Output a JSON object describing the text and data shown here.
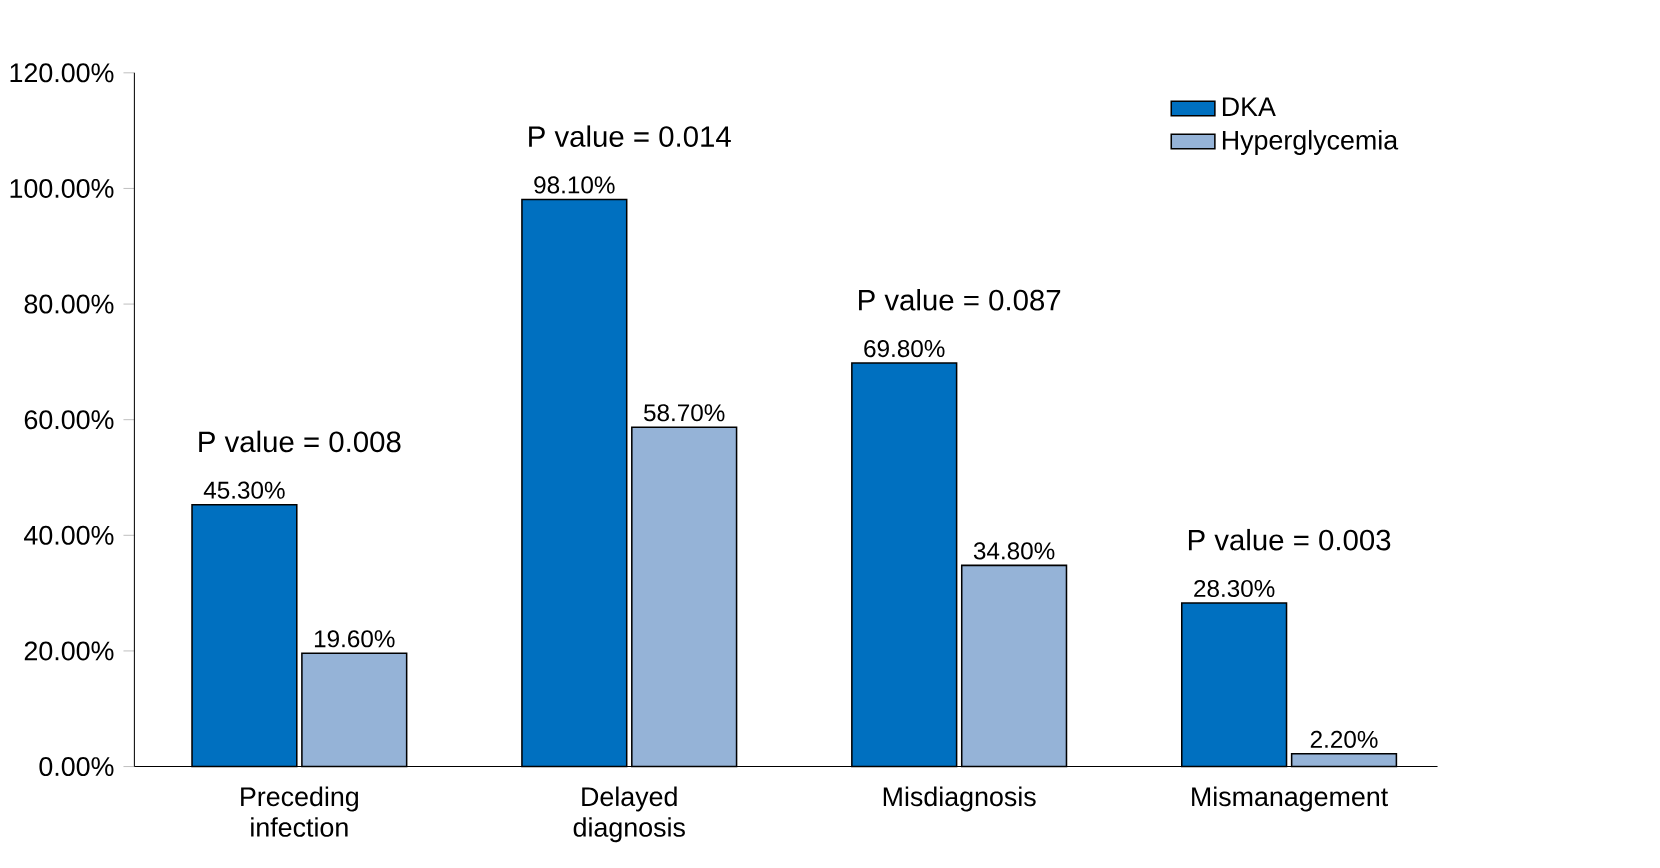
{
  "chart_data": {
    "type": "bar",
    "categories": [
      "Preceding infection",
      "Delayed diagnosis",
      "Misdiagnosis",
      "Mismanagement"
    ],
    "series": [
      {
        "name": "DKA",
        "color": "#0070c0",
        "values": [
          45.3,
          98.1,
          69.8,
          28.3
        ],
        "value_labels": [
          "45.30%",
          "98.10%",
          "69.80%",
          "28.30%"
        ]
      },
      {
        "name": "Hyperglycemia",
        "color": "#95b3d7",
        "values": [
          19.6,
          58.7,
          34.8,
          2.2
        ],
        "value_labels": [
          "19.60%",
          "58.70%",
          "34.80%",
          "2.20%"
        ]
      }
    ],
    "ylim": [
      0,
      120
    ],
    "yticks": [
      {
        "value": 0,
        "label": "0.00%"
      },
      {
        "value": 20,
        "label": "20.00%"
      },
      {
        "value": 40,
        "label": "40.00%"
      },
      {
        "value": 60,
        "label": "60.00%"
      },
      {
        "value": 80,
        "label": "80.00%"
      },
      {
        "value": 100,
        "label": "100.00%"
      },
      {
        "value": 120,
        "label": "120.00%"
      }
    ],
    "annotations": [
      "P value = 0.008",
      "P value = 0.014",
      "P value = 0.087",
      "P value = 0.003"
    ],
    "grid": false,
    "legend": "top right"
  }
}
